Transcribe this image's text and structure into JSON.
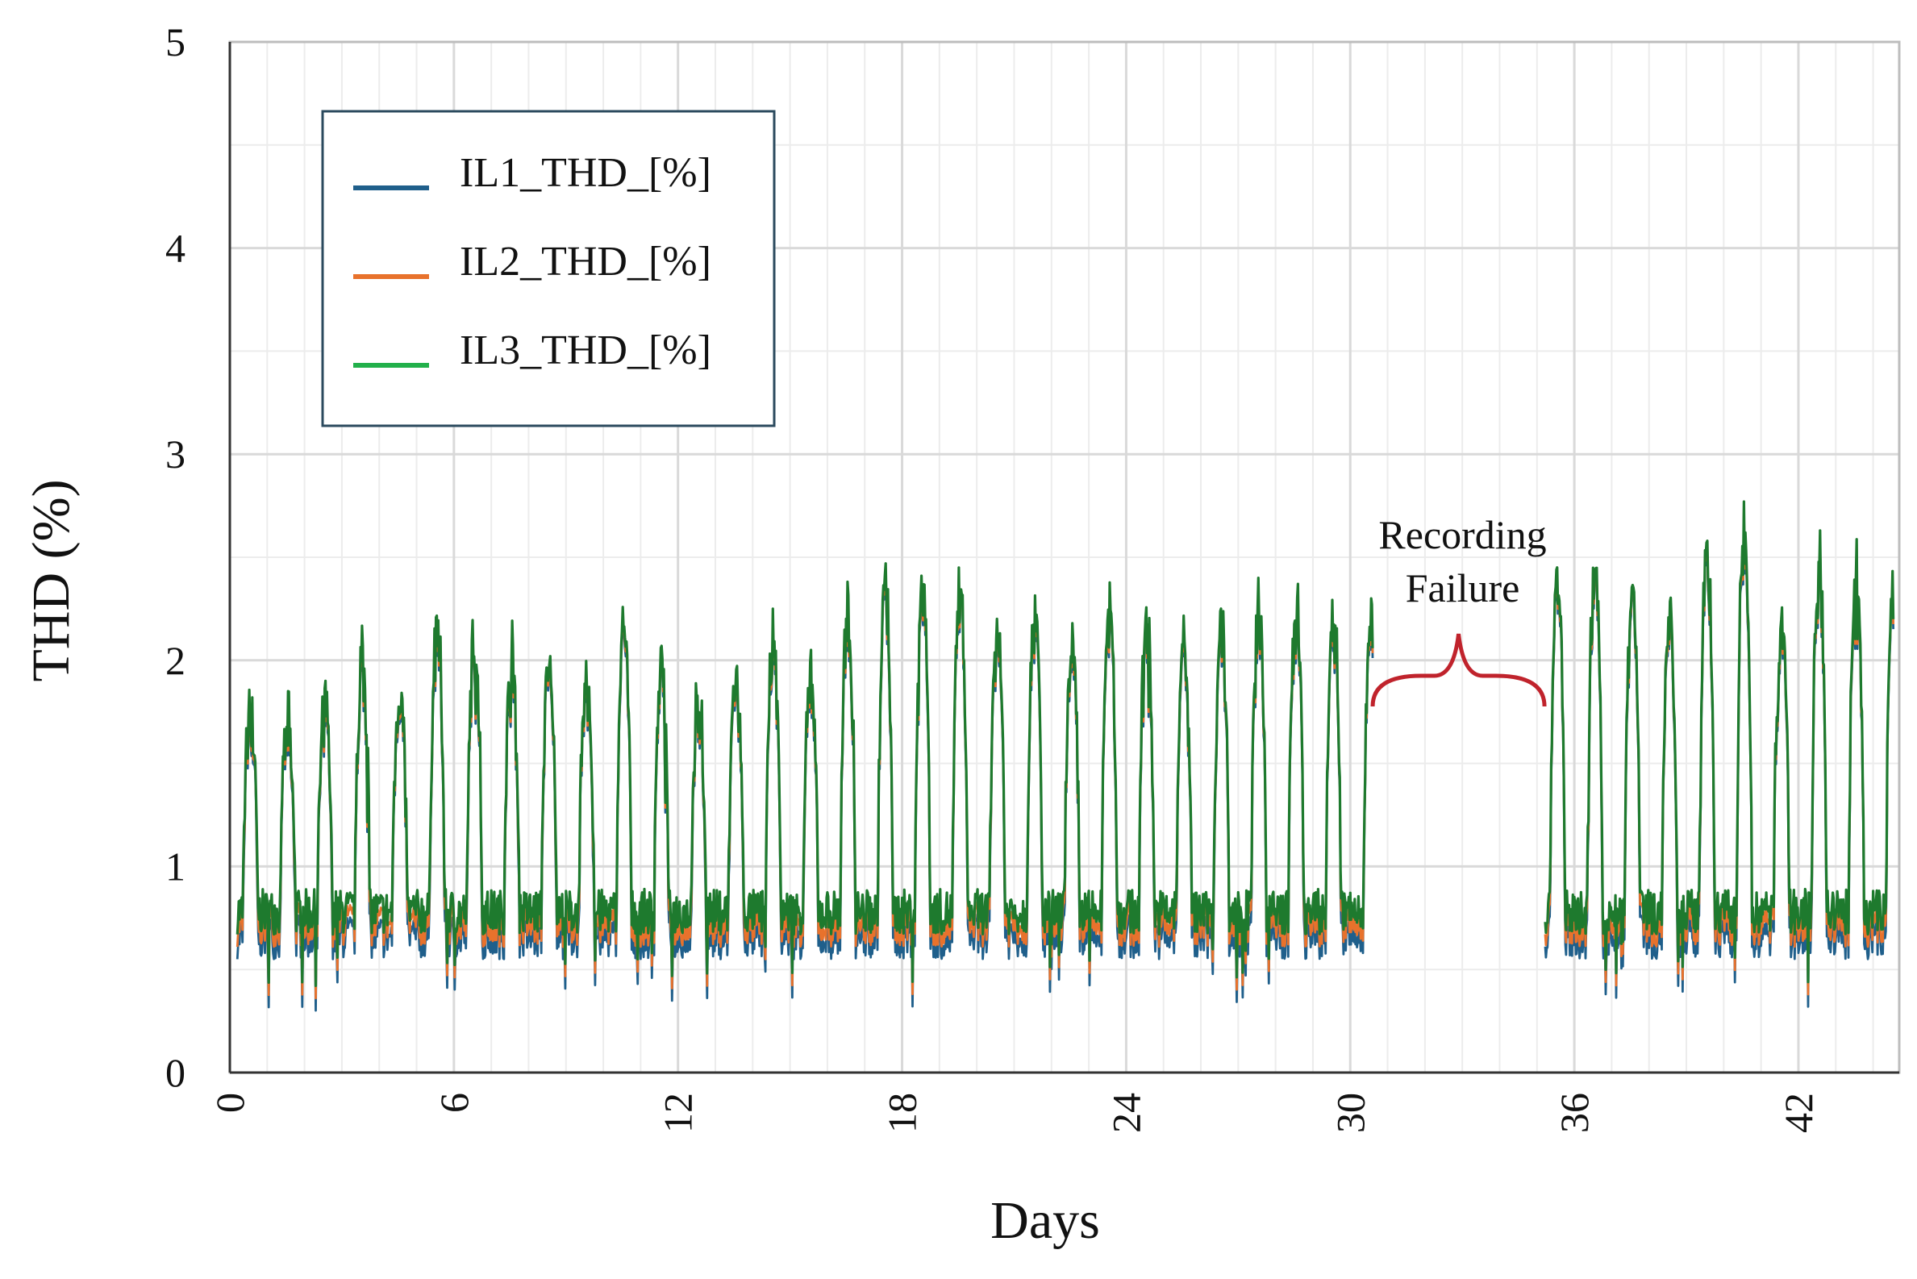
{
  "chart_data": {
    "type": "line",
    "title": "",
    "xlabel": "Days",
    "ylabel": "THD (%)",
    "xlim": [
      0,
      44.7
    ],
    "ylim": [
      0,
      5
    ],
    "x_ticks": [
      0,
      6,
      12,
      18,
      24,
      30,
      36,
      42
    ],
    "x_tick_labels": [
      "0",
      "6",
      "12",
      "18",
      "24",
      "30",
      "36",
      "42"
    ],
    "y_ticks": [
      0,
      1,
      2,
      3,
      4,
      5
    ],
    "y_tick_labels": [
      "0",
      "1",
      "2",
      "3",
      "4",
      "5"
    ],
    "x_minor_step": 1,
    "y_minor_step": 0.5,
    "grid": true,
    "legend_position": "top-left",
    "series": [
      {
        "name": "IL1_THD_[%]",
        "color": "#1f5f8b",
        "offset": -0.12
      },
      {
        "name": "IL2_THD_[%]",
        "color": "#e8722c",
        "offset": -0.06
      },
      {
        "name": "IL3_THD_[%]",
        "color": "#1e7a2e",
        "offset": 0
      }
    ],
    "gaps": [
      {
        "start": 30.6,
        "end": 35.2
      }
    ],
    "daily_peak_thd": [
      1.85,
      1.8,
      1.85,
      2.12,
      1.97,
      2.25,
      2.2,
      2.15,
      2.1,
      2.0,
      2.3,
      2.02,
      1.9,
      2.0,
      2.2,
      2.0,
      2.35,
      2.42,
      2.48,
      2.4,
      2.3,
      2.35,
      2.2,
      2.38,
      2.28,
      2.25,
      2.3,
      2.35,
      2.35,
      2.32,
      2.25,
      2.52,
      2.55,
      2.45,
      2.35,
      2.62,
      2.72,
      2.28,
      2.58
    ],
    "peak_days_after_gap_start": 35.4,
    "annotations": [
      {
        "text_lines": [
          "Recording",
          "Failure"
        ],
        "x_start": 30.6,
        "x_end": 35.2,
        "y": 2.05,
        "color": "#c0232c"
      }
    ],
    "background_color": "#ffffff",
    "grid_color": "#d9d9d9"
  }
}
